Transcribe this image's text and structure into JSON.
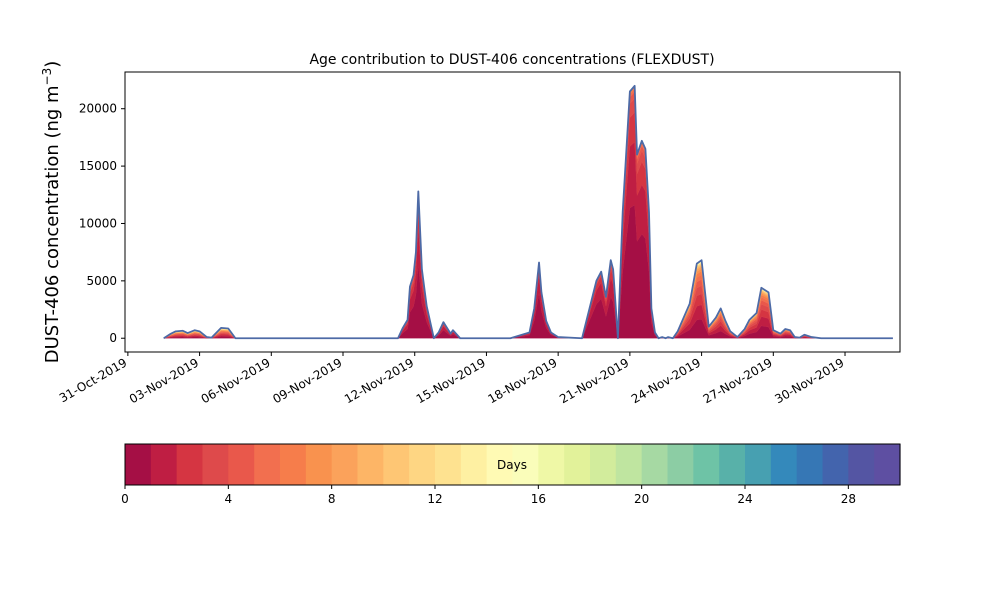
{
  "chart_data": {
    "type": "area",
    "title": "Age contribution to DUST-406 concentrations (FLEXDUST)",
    "ylabel_main": "DUST-406 concentration (ng m",
    "ylabel_sup": "−3",
    "ylabel_close": ")",
    "y_ticks": [
      0,
      5000,
      10000,
      15000,
      20000
    ],
    "y_tick_labels": [
      "0",
      "5000",
      "10000",
      "15000",
      "20000"
    ],
    "ylim": [
      -1200,
      23200
    ],
    "x_tick_labels": [
      "31-Oct-2019",
      "03-Nov-2019",
      "06-Nov-2019",
      "09-Nov-2019",
      "12-Nov-2019",
      "15-Nov-2019",
      "18-Nov-2019",
      "21-Nov-2019",
      "24-Nov-2019",
      "27-Nov-2019",
      "30-Nov-2019"
    ],
    "x_tick_days": [
      0,
      3,
      6,
      9,
      12,
      15,
      18,
      21,
      24,
      27,
      30
    ],
    "xlim": [
      -0.12,
      32.3
    ],
    "total": {
      "x": [
        1.5,
        1.8,
        2.0,
        2.3,
        2.5,
        2.8,
        3.0,
        3.3,
        3.5,
        3.9,
        4.2,
        4.5,
        5.5,
        6.5,
        7.5,
        8.5,
        9.5,
        10.5,
        11.3,
        11.5,
        11.7,
        11.8,
        11.95,
        12.05,
        12.15,
        12.3,
        12.5,
        12.8,
        13.0,
        13.2,
        13.5,
        13.6,
        13.9,
        14.2,
        15.0,
        16.0,
        16.8,
        17.0,
        17.2,
        17.3,
        17.5,
        17.7,
        18.0,
        19.0,
        19.6,
        19.8,
        20.0,
        20.2,
        20.3,
        20.5,
        20.7,
        21.0,
        21.2,
        21.3,
        21.5,
        21.65,
        21.8,
        21.9,
        22.05,
        22.2,
        22.35,
        22.5,
        22.6,
        22.8,
        23.0,
        23.5,
        23.8,
        24.0,
        24.3,
        24.6,
        24.8,
        25.0,
        25.2,
        25.5,
        25.8,
        26.0,
        26.2,
        26.3,
        26.5,
        26.8,
        27.0,
        27.3,
        27.5,
        27.7,
        27.9,
        28.1,
        28.3,
        28.6,
        29.0,
        29.5,
        30.0,
        31.0,
        32.0
      ],
      "y": [
        0,
        400,
        600,
        650,
        450,
        700,
        600,
        100,
        50,
        900,
        850,
        0,
        0,
        0,
        0,
        0,
        0,
        0,
        0,
        900,
        1600,
        4500,
        5500,
        7500,
        12800,
        6000,
        2800,
        0,
        500,
        1400,
        400,
        700,
        0,
        0,
        0,
        0,
        500,
        2600,
        6600,
        4000,
        1500,
        500,
        100,
        0,
        5000,
        5800,
        3600,
        6800,
        6000,
        0,
        11000,
        21500,
        22000,
        16000,
        17200,
        16500,
        11000,
        2600,
        500,
        0,
        100,
        0,
        100,
        0,
        600,
        3000,
        6500,
        6800,
        1000,
        1800,
        2600,
        1500,
        600,
        100,
        800,
        1600,
        2000,
        2200,
        4400,
        4000,
        700,
        400,
        800,
        700,
        100,
        50,
        300,
        100,
        0,
        0,
        0,
        0,
        0
      ]
    },
    "legend": {
      "label": "Days",
      "ticks": [
        0,
        4,
        8,
        12,
        16,
        20,
        24,
        28
      ],
      "tick_labels": [
        "0",
        "4",
        "8",
        "12",
        "16",
        "20",
        "24",
        "28"
      ],
      "range": [
        0,
        30
      ],
      "colors": [
        "#a50f45",
        "#bf1e43",
        "#d53542",
        "#de4a4b",
        "#e9584b",
        "#f26f4f",
        "#f67d4b",
        "#f9924e",
        "#fba25b",
        "#fdb566",
        "#fec674",
        "#fed683",
        "#fee290",
        "#fef0a2",
        "#fffab4",
        "#fafdba",
        "#eff8a6",
        "#e2f29a",
        "#d2ec9c",
        "#bfe5a0",
        "#a6d9a3",
        "#8ccda4",
        "#6ec3a6",
        "#58b1a9",
        "#47a0b1",
        "#3489bb",
        "#3677b5",
        "#4364ad",
        "#5455a3",
        "#5e4fa2"
      ]
    }
  }
}
